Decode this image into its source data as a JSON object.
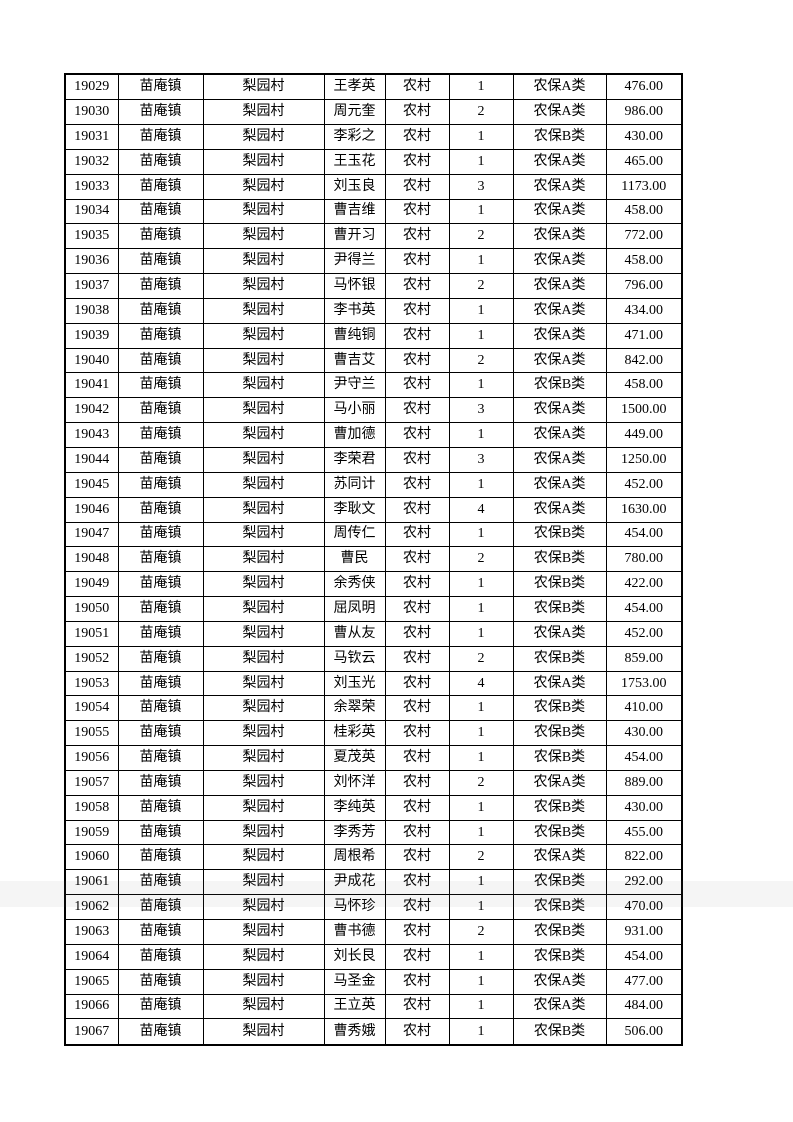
{
  "page": {
    "background": "#ffffff",
    "text_color": "#000000",
    "grid_color": "#000000"
  },
  "table": {
    "columns": [
      "record-id",
      "town",
      "village",
      "person-name",
      "household-type",
      "person-count",
      "insurance-type",
      "amount"
    ],
    "rows": [
      [
        "19029",
        "苗庵镇",
        "梨园村",
        "王孝英",
        "农村",
        "1",
        "农保A类",
        "476.00"
      ],
      [
        "19030",
        "苗庵镇",
        "梨园村",
        "周元奎",
        "农村",
        "2",
        "农保A类",
        "986.00"
      ],
      [
        "19031",
        "苗庵镇",
        "梨园村",
        "李彩之",
        "农村",
        "1",
        "农保B类",
        "430.00"
      ],
      [
        "19032",
        "苗庵镇",
        "梨园村",
        "王玉花",
        "农村",
        "1",
        "农保A类",
        "465.00"
      ],
      [
        "19033",
        "苗庵镇",
        "梨园村",
        "刘玉良",
        "农村",
        "3",
        "农保A类",
        "1173.00"
      ],
      [
        "19034",
        "苗庵镇",
        "梨园村",
        "曹吉维",
        "农村",
        "1",
        "农保A类",
        "458.00"
      ],
      [
        "19035",
        "苗庵镇",
        "梨园村",
        "曹开习",
        "农村",
        "2",
        "农保A类",
        "772.00"
      ],
      [
        "19036",
        "苗庵镇",
        "梨园村",
        "尹得兰",
        "农村",
        "1",
        "农保A类",
        "458.00"
      ],
      [
        "19037",
        "苗庵镇",
        "梨园村",
        "马怀银",
        "农村",
        "2",
        "农保A类",
        "796.00"
      ],
      [
        "19038",
        "苗庵镇",
        "梨园村",
        "李书英",
        "农村",
        "1",
        "农保A类",
        "434.00"
      ],
      [
        "19039",
        "苗庵镇",
        "梨园村",
        "曹纯铜",
        "农村",
        "1",
        "农保A类",
        "471.00"
      ],
      [
        "19040",
        "苗庵镇",
        "梨园村",
        "曹吉艾",
        "农村",
        "2",
        "农保A类",
        "842.00"
      ],
      [
        "19041",
        "苗庵镇",
        "梨园村",
        "尹守兰",
        "农村",
        "1",
        "农保B类",
        "458.00"
      ],
      [
        "19042",
        "苗庵镇",
        "梨园村",
        "马小丽",
        "农村",
        "3",
        "农保A类",
        "1500.00"
      ],
      [
        "19043",
        "苗庵镇",
        "梨园村",
        "曹加德",
        "农村",
        "1",
        "农保A类",
        "449.00"
      ],
      [
        "19044",
        "苗庵镇",
        "梨园村",
        "李荣君",
        "农村",
        "3",
        "农保A类",
        "1250.00"
      ],
      [
        "19045",
        "苗庵镇",
        "梨园村",
        "苏同计",
        "农村",
        "1",
        "农保A类",
        "452.00"
      ],
      [
        "19046",
        "苗庵镇",
        "梨园村",
        "李耿文",
        "农村",
        "4",
        "农保A类",
        "1630.00"
      ],
      [
        "19047",
        "苗庵镇",
        "梨园村",
        "周传仁",
        "农村",
        "1",
        "农保B类",
        "454.00"
      ],
      [
        "19048",
        "苗庵镇",
        "梨园村",
        "曹民",
        "农村",
        "2",
        "农保B类",
        "780.00"
      ],
      [
        "19049",
        "苗庵镇",
        "梨园村",
        "余秀侠",
        "农村",
        "1",
        "农保B类",
        "422.00"
      ],
      [
        "19050",
        "苗庵镇",
        "梨园村",
        "屈凤明",
        "农村",
        "1",
        "农保B类",
        "454.00"
      ],
      [
        "19051",
        "苗庵镇",
        "梨园村",
        "曹从友",
        "农村",
        "1",
        "农保A类",
        "452.00"
      ],
      [
        "19052",
        "苗庵镇",
        "梨园村",
        "马钦云",
        "农村",
        "2",
        "农保B类",
        "859.00"
      ],
      [
        "19053",
        "苗庵镇",
        "梨园村",
        "刘玉光",
        "农村",
        "4",
        "农保A类",
        "1753.00"
      ],
      [
        "19054",
        "苗庵镇",
        "梨园村",
        "余翠荣",
        "农村",
        "1",
        "农保B类",
        "410.00"
      ],
      [
        "19055",
        "苗庵镇",
        "梨园村",
        "桂彩英",
        "农村",
        "1",
        "农保B类",
        "430.00"
      ],
      [
        "19056",
        "苗庵镇",
        "梨园村",
        "夏茂英",
        "农村",
        "1",
        "农保B类",
        "454.00"
      ],
      [
        "19057",
        "苗庵镇",
        "梨园村",
        "刘怀洋",
        "农村",
        "2",
        "农保A类",
        "889.00"
      ],
      [
        "19058",
        "苗庵镇",
        "梨园村",
        "李纯英",
        "农村",
        "1",
        "农保B类",
        "430.00"
      ],
      [
        "19059",
        "苗庵镇",
        "梨园村",
        "李秀芳",
        "农村",
        "1",
        "农保B类",
        "455.00"
      ],
      [
        "19060",
        "苗庵镇",
        "梨园村",
        "周根希",
        "农村",
        "2",
        "农保A类",
        "822.00"
      ],
      [
        "19061",
        "苗庵镇",
        "梨园村",
        "尹成花",
        "农村",
        "1",
        "农保B类",
        "292.00"
      ],
      [
        "19062",
        "苗庵镇",
        "梨园村",
        "马怀珍",
        "农村",
        "1",
        "农保B类",
        "470.00"
      ],
      [
        "19063",
        "苗庵镇",
        "梨园村",
        "曹书德",
        "农村",
        "2",
        "农保B类",
        "931.00"
      ],
      [
        "19064",
        "苗庵镇",
        "梨园村",
        "刘长艮",
        "农村",
        "1",
        "农保B类",
        "454.00"
      ],
      [
        "19065",
        "苗庵镇",
        "梨园村",
        "马圣金",
        "农村",
        "1",
        "农保A类",
        "477.00"
      ],
      [
        "19066",
        "苗庵镇",
        "梨园村",
        "王立英",
        "农村",
        "1",
        "农保A类",
        "484.00"
      ],
      [
        "19067",
        "苗庵镇",
        "梨园村",
        "曹秀娥",
        "农村",
        "1",
        "农保B类",
        "506.00"
      ]
    ]
  }
}
